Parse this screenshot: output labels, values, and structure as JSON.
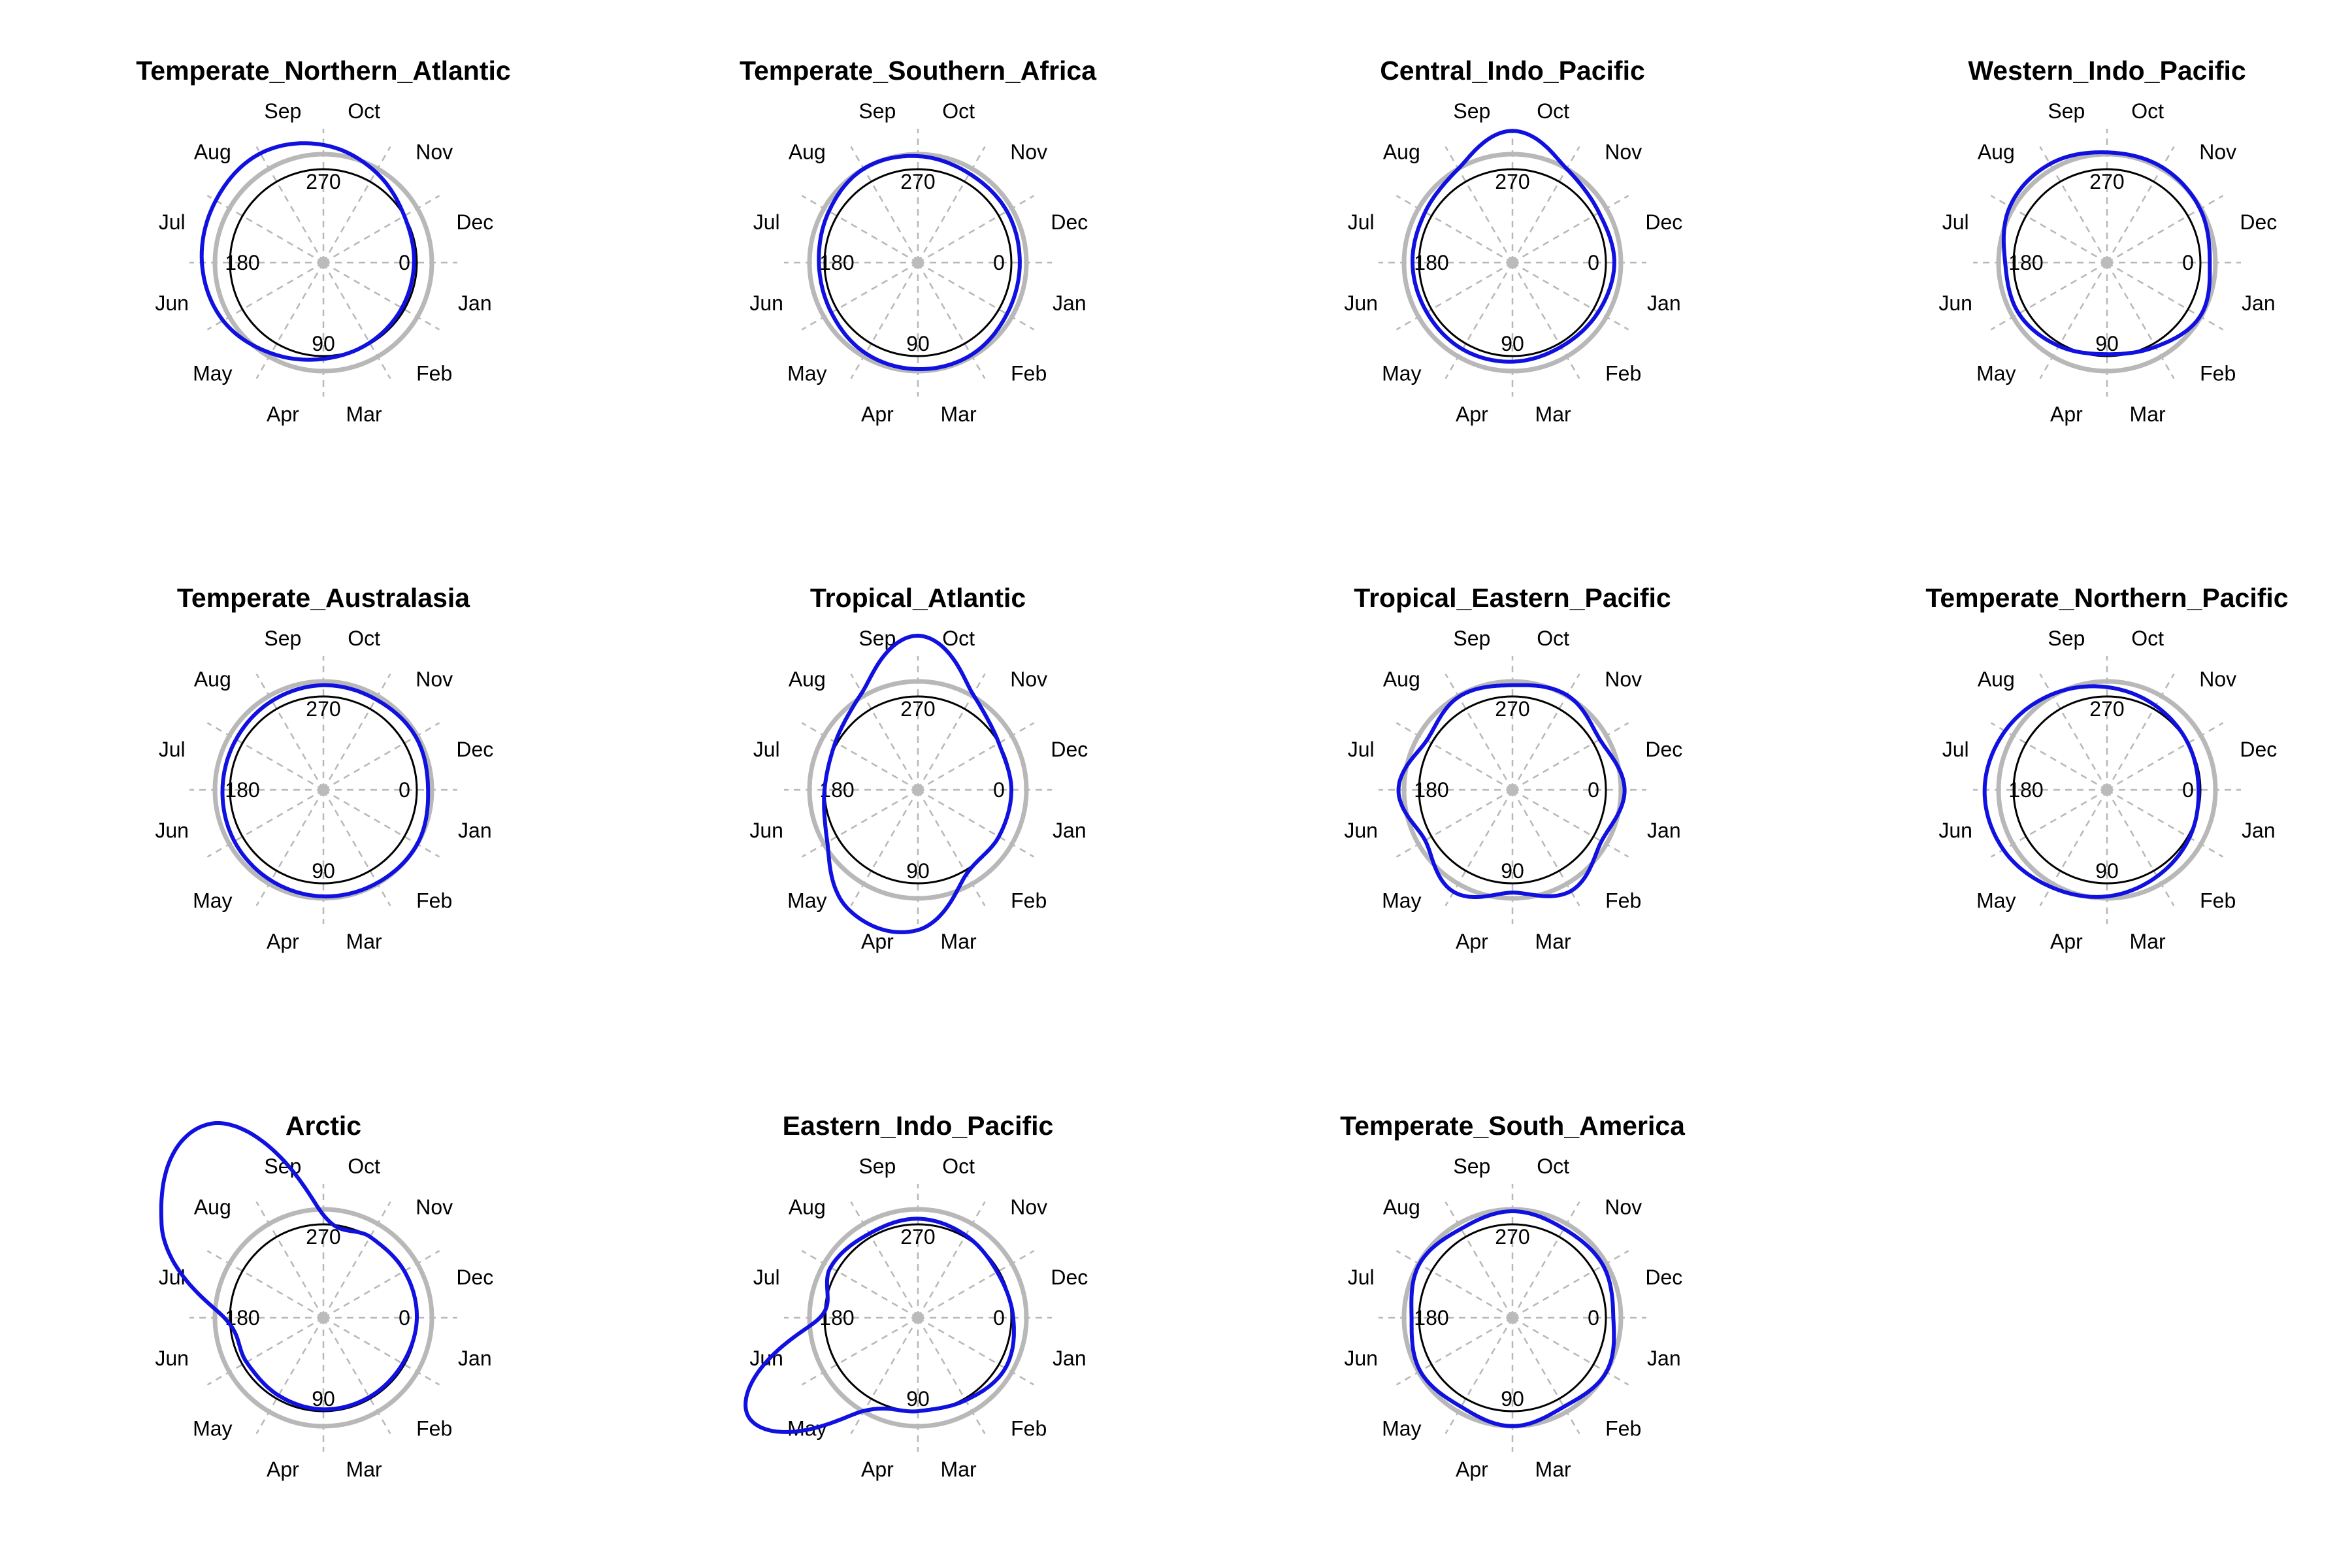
{
  "figure": {
    "months": [
      "Jan",
      "Feb",
      "Mar",
      "Apr",
      "May",
      "Jun",
      "Jul",
      "Aug",
      "Sep",
      "Oct",
      "Nov",
      "Dec"
    ],
    "degree_labels": [
      "0",
      "90",
      "180",
      "270"
    ],
    "colors": {
      "density": "#1010e0",
      "reference": "#b8b8b8",
      "base_circle": "#000000",
      "spokes": "#b8b8b8",
      "center_dot": "#bbbbbb"
    }
  },
  "chart_data": [
    {
      "type": "line",
      "title": "Temperate_Northern_Atlantic",
      "x": [
        0,
        30,
        60,
        90,
        120,
        150,
        180,
        210,
        240,
        270,
        300,
        330
      ],
      "values": [
        0.97,
        0.97,
        0.99,
        1.03,
        1.12,
        1.24,
        1.3,
        1.33,
        1.35,
        1.26,
        1.12,
        1.0
      ]
    },
    {
      "type": "line",
      "title": "Temperate_Southern_Africa",
      "x": [
        0,
        30,
        60,
        90,
        120,
        150,
        180,
        210,
        240,
        270,
        300,
        330
      ],
      "values": [
        1.09,
        1.1,
        1.14,
        1.14,
        1.12,
        1.07,
        1.06,
        1.1,
        1.16,
        1.14,
        1.1,
        1.1
      ]
    },
    {
      "type": "line",
      "title": "Central_Indo_Pacific",
      "x": [
        0,
        30,
        60,
        90,
        120,
        150,
        180,
        210,
        240,
        270,
        300,
        330
      ],
      "values": [
        1.09,
        1.06,
        1.04,
        1.06,
        1.07,
        1.06,
        1.07,
        1.08,
        1.16,
        1.41,
        1.16,
        1.07
      ]
    },
    {
      "type": "line",
      "title": "Western_Indo_Pacific",
      "x": [
        0,
        30,
        60,
        90,
        120,
        150,
        180,
        210,
        240,
        270,
        300,
        330
      ],
      "values": [
        1.1,
        1.15,
        1.04,
        0.98,
        1.03,
        1.09,
        1.09,
        1.2,
        1.22,
        1.18,
        1.18,
        1.15
      ]
    },
    {
      "type": "line",
      "title": "Temperate_Australasia",
      "x": [
        0,
        30,
        60,
        90,
        120,
        150,
        180,
        210,
        240,
        270,
        300,
        330
      ],
      "values": [
        1.12,
        1.16,
        1.15,
        1.14,
        1.12,
        1.1,
        1.08,
        1.08,
        1.1,
        1.12,
        1.12,
        1.14
      ]
    },
    {
      "type": "line",
      "title": "Tropical_Atlantic",
      "x": [
        0,
        30,
        60,
        90,
        120,
        150,
        180,
        210,
        240,
        270,
        300,
        330
      ],
      "values": [
        1.0,
        1.0,
        1.04,
        1.5,
        1.48,
        1.12,
        1.0,
        1.02,
        1.2,
        1.65,
        1.18,
        1.0
      ]
    },
    {
      "type": "line",
      "title": "Tropical_Eastern_Pacific",
      "x": [
        0,
        30,
        60,
        90,
        120,
        150,
        180,
        210,
        240,
        270,
        300,
        330
      ],
      "values": [
        1.2,
        1.1,
        1.25,
        1.1,
        1.26,
        1.08,
        1.22,
        1.06,
        1.15,
        1.12,
        1.17,
        1.08
      ]
    },
    {
      "type": "line",
      "title": "Temperate_Northern_Pacific",
      "x": [
        0,
        30,
        60,
        90,
        120,
        150,
        180,
        210,
        240,
        270,
        300,
        330
      ],
      "values": [
        0.98,
        1.02,
        1.07,
        1.14,
        1.2,
        1.28,
        1.31,
        1.26,
        1.18,
        1.1,
        1.04,
        1.0
      ]
    },
    {
      "type": "line",
      "title": "Arctic",
      "x": [
        0,
        30,
        60,
        90,
        120,
        150,
        180,
        210,
        240,
        270,
        300,
        330
      ],
      "values": [
        1.0,
        0.98,
        0.98,
        0.98,
        0.96,
        0.95,
        1.06,
        2.0,
        2.4,
        1.1,
        1.0,
        1.0
      ]
    },
    {
      "type": "line",
      "title": "Eastern_Indo_Pacific",
      "x": [
        0,
        30,
        60,
        90,
        120,
        150,
        180,
        210,
        240,
        270,
        300,
        330
      ],
      "values": [
        1.02,
        1.08,
        1.02,
        1.0,
        1.15,
        2.1,
        1.05,
        1.08,
        1.04,
        1.06,
        1.02,
        0.98
      ]
    },
    {
      "type": "line",
      "title": "Temperate_South_America",
      "x": [
        0,
        30,
        60,
        90,
        120,
        150,
        180,
        210,
        240,
        270,
        300,
        330
      ],
      "values": [
        1.08,
        1.16,
        1.1,
        1.16,
        1.1,
        1.14,
        1.08,
        1.15,
        1.1,
        1.14,
        1.1,
        1.12
      ]
    }
  ]
}
